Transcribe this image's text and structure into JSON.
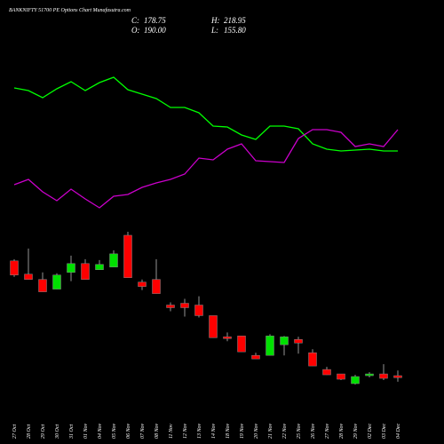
{
  "chart_data": {
    "type": "candlestick",
    "title": "BANKNIFTY 51700 PE Options Chart Munafasutra.com",
    "ohlc_labels": {
      "close": "C:",
      "high": "H:",
      "open": "O:",
      "low": "L:"
    },
    "categories": [
      "27 Oct",
      "28 Oct",
      "29 Oct",
      "30 Oct",
      "31 Oct",
      "01 Nov",
      "04 Nov",
      "05 Nov",
      "06 Nov",
      "07 Nov",
      "08 Nov",
      "11 Nov",
      "12 Nov",
      "13 Nov",
      "14 Nov",
      "18 Nov",
      "19 Nov",
      "20 Nov",
      "21 Nov",
      "22 Nov",
      "25 Nov",
      "26 Nov",
      "27 Nov",
      "28 Nov",
      "29 Nov",
      "02 Dec",
      "03 Dec",
      "04 Dec"
    ],
    "open": [
      840,
      765,
      735,
      680,
      775,
      825,
      790,
      805,
      985,
      720,
      735,
      590,
      600,
      590,
      530,
      410,
      415,
      305,
      305,
      365,
      395,
      320,
      225,
      200,
      145,
      190,
      200,
      190
    ],
    "high": [
      850,
      910,
      775,
      770,
      870,
      850,
      845,
      900,
      1005,
      735,
      850,
      605,
      625,
      640,
      530,
      435,
      415,
      320,
      425,
      415,
      410,
      340,
      240,
      200,
      195,
      210,
      255,
      218.95
    ],
    "low": [
      750,
      735,
      665,
      680,
      725,
      735,
      790,
      805,
      745,
      675,
      655,
      555,
      525,
      520,
      405,
      385,
      325,
      285,
      305,
      305,
      315,
      245,
      195,
      165,
      140,
      180,
      165,
      155.8
    ],
    "close": [
      760,
      735,
      665,
      760,
      825,
      735,
      820,
      880,
      745,
      695,
      655,
      575,
      575,
      530,
      405,
      400,
      325,
      285,
      415,
      410,
      375,
      245,
      195,
      170,
      185,
      200,
      175,
      178.75
    ],
    "up_color": "#00e000",
    "down_color": "#ff0000",
    "series": [
      {
        "color": "#00ff00",
        "values": [
          201,
          198,
          190,
          200,
          208,
          198,
          207,
          213,
          199,
          194,
          189,
          179,
          179,
          173,
          158,
          157,
          148,
          143,
          158,
          158,
          155,
          138,
          132,
          130,
          131,
          132,
          130,
          130
        ]
      },
      {
        "color": "#cc00cc",
        "values": [
          92,
          98,
          84,
          74,
          87,
          76,
          66,
          79,
          81,
          89,
          94,
          98,
          104,
          122,
          120,
          132,
          138,
          119,
          118,
          117,
          144,
          154,
          154,
          151,
          135,
          138,
          135,
          154
        ]
      }
    ]
  }
}
